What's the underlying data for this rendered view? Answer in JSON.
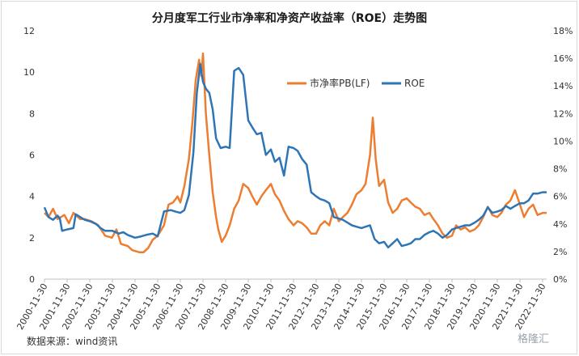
{
  "title": "分月度军工行业市净率和净资产收益率（ROE）走势图",
  "source": "数据来源：wind资讯",
  "watermark": "格隆汇",
  "chart_data": {
    "type": "line",
    "title": "分月度军工行业市净率和净资产收益率（ROE）走势图",
    "grid": false,
    "legend_position": "top-center",
    "x_labels": [
      "2000-11-30",
      "2001-11-30",
      "2002-11-30",
      "2003-11-30",
      "2004-11-30",
      "2005-11-30",
      "2006-11-30",
      "2007-11-30",
      "2008-11-30",
      "2009-11-30",
      "2010-11-30",
      "2011-11-30",
      "2012-11-30",
      "2013-11-30",
      "2014-11-30",
      "2015-11-30",
      "2016-11-30",
      "2017-11-30",
      "2018-11-30",
      "2019-11-30",
      "2020-11-30",
      "2021-11-30",
      "2022-11-30"
    ],
    "y_left": {
      "min": 0,
      "max": 12,
      "ticks": [
        0,
        2,
        4,
        6,
        8,
        10,
        12
      ]
    },
    "y_right": {
      "min": 0,
      "max": 18,
      "ticks": [
        "0%",
        "2%",
        "4%",
        "6%",
        "8%",
        "10%",
        "12%",
        "14%",
        "16%",
        "18%"
      ]
    },
    "series": [
      {
        "name": "市净率PB(LF)",
        "axis": "left",
        "color": "#ed7d31",
        "points": [
          [
            2000.92,
            3.2
          ],
          [
            2001.1,
            3.0
          ],
          [
            2001.3,
            3.4
          ],
          [
            2001.5,
            2.9
          ],
          [
            2001.8,
            3.1
          ],
          [
            2002.0,
            2.7
          ],
          [
            2002.2,
            3.2
          ],
          [
            2002.5,
            2.9
          ],
          [
            2002.7,
            2.9
          ],
          [
            2003.0,
            2.8
          ],
          [
            2003.3,
            2.6
          ],
          [
            2003.6,
            2.1
          ],
          [
            2003.9,
            2.0
          ],
          [
            2004.1,
            2.4
          ],
          [
            2004.3,
            1.7
          ],
          [
            2004.6,
            1.6
          ],
          [
            2004.8,
            1.4
          ],
          [
            2005.1,
            1.3
          ],
          [
            2005.3,
            1.3
          ],
          [
            2005.5,
            1.5
          ],
          [
            2005.7,
            1.9
          ],
          [
            2005.92,
            2.1
          ],
          [
            2006.2,
            2.6
          ],
          [
            2006.4,
            3.6
          ],
          [
            2006.6,
            3.7
          ],
          [
            2006.8,
            4.0
          ],
          [
            2006.92,
            3.7
          ],
          [
            2007.1,
            4.5
          ],
          [
            2007.3,
            5.8
          ],
          [
            2007.45,
            7.5
          ],
          [
            2007.6,
            9.6
          ],
          [
            2007.75,
            10.6
          ],
          [
            2007.85,
            9.8
          ],
          [
            2007.92,
            10.9
          ],
          [
            2008.05,
            8.0
          ],
          [
            2008.2,
            6.0
          ],
          [
            2008.35,
            4.2
          ],
          [
            2008.5,
            3.0
          ],
          [
            2008.6,
            2.4
          ],
          [
            2008.75,
            1.8
          ],
          [
            2008.92,
            2.1
          ],
          [
            2009.1,
            2.6
          ],
          [
            2009.3,
            3.4
          ],
          [
            2009.5,
            3.8
          ],
          [
            2009.7,
            4.6
          ],
          [
            2009.92,
            4.4
          ],
          [
            2010.1,
            4.0
          ],
          [
            2010.3,
            3.6
          ],
          [
            2010.5,
            4.0
          ],
          [
            2010.7,
            4.3
          ],
          [
            2010.92,
            4.6
          ],
          [
            2011.1,
            4.1
          ],
          [
            2011.3,
            3.8
          ],
          [
            2011.5,
            3.3
          ],
          [
            2011.7,
            2.9
          ],
          [
            2011.92,
            2.6
          ],
          [
            2012.1,
            2.8
          ],
          [
            2012.3,
            2.7
          ],
          [
            2012.5,
            2.5
          ],
          [
            2012.7,
            2.2
          ],
          [
            2012.92,
            2.2
          ],
          [
            2013.1,
            2.6
          ],
          [
            2013.3,
            2.8
          ],
          [
            2013.5,
            2.6
          ],
          [
            2013.7,
            3.4
          ],
          [
            2013.92,
            2.8
          ],
          [
            2014.1,
            3.0
          ],
          [
            2014.3,
            3.2
          ],
          [
            2014.5,
            3.6
          ],
          [
            2014.7,
            4.1
          ],
          [
            2014.92,
            4.3
          ],
          [
            2015.1,
            4.6
          ],
          [
            2015.3,
            6.0
          ],
          [
            2015.42,
            7.8
          ],
          [
            2015.55,
            5.8
          ],
          [
            2015.7,
            4.5
          ],
          [
            2015.92,
            4.8
          ],
          [
            2016.1,
            3.7
          ],
          [
            2016.3,
            3.2
          ],
          [
            2016.5,
            3.4
          ],
          [
            2016.7,
            3.8
          ],
          [
            2016.92,
            3.9
          ],
          [
            2017.1,
            3.7
          ],
          [
            2017.3,
            3.5
          ],
          [
            2017.5,
            3.4
          ],
          [
            2017.7,
            3.1
          ],
          [
            2017.92,
            3.2
          ],
          [
            2018.1,
            2.9
          ],
          [
            2018.3,
            2.6
          ],
          [
            2018.5,
            2.2
          ],
          [
            2018.7,
            2.0
          ],
          [
            2018.92,
            2.1
          ],
          [
            2019.1,
            2.6
          ],
          [
            2019.3,
            2.4
          ],
          [
            2019.5,
            2.5
          ],
          [
            2019.7,
            2.3
          ],
          [
            2019.92,
            2.4
          ],
          [
            2020.1,
            2.6
          ],
          [
            2020.3,
            3.0
          ],
          [
            2020.5,
            3.5
          ],
          [
            2020.7,
            3.1
          ],
          [
            2020.92,
            3.0
          ],
          [
            2021.1,
            3.2
          ],
          [
            2021.3,
            3.6
          ],
          [
            2021.5,
            3.8
          ],
          [
            2021.7,
            4.3
          ],
          [
            2021.92,
            3.6
          ],
          [
            2022.1,
            3.0
          ],
          [
            2022.3,
            3.4
          ],
          [
            2022.5,
            3.6
          ],
          [
            2022.7,
            3.1
          ],
          [
            2022.92,
            3.2
          ],
          [
            2023.1,
            3.2
          ]
        ]
      },
      {
        "name": "ROE",
        "axis": "right",
        "color": "#2e75b6",
        "points": [
          [
            2000.92,
            5.2
          ],
          [
            2001.1,
            4.5
          ],
          [
            2001.3,
            4.3
          ],
          [
            2001.5,
            4.6
          ],
          [
            2001.6,
            4.4
          ],
          [
            2001.7,
            3.5
          ],
          [
            2001.92,
            3.6
          ],
          [
            2002.2,
            3.7
          ],
          [
            2002.3,
            4.7
          ],
          [
            2002.5,
            4.5
          ],
          [
            2002.7,
            4.3
          ],
          [
            2002.92,
            4.2
          ],
          [
            2003.2,
            4.0
          ],
          [
            2003.4,
            3.7
          ],
          [
            2003.6,
            3.5
          ],
          [
            2003.8,
            3.5
          ],
          [
            2003.92,
            3.5
          ],
          [
            2004.2,
            3.3
          ],
          [
            2004.4,
            3.4
          ],
          [
            2004.6,
            3.2
          ],
          [
            2004.92,
            3.0
          ],
          [
            2005.2,
            3.1
          ],
          [
            2005.4,
            3.2
          ],
          [
            2005.7,
            3.3
          ],
          [
            2005.92,
            3.1
          ],
          [
            2006.2,
            4.9
          ],
          [
            2006.5,
            5.0
          ],
          [
            2006.7,
            4.9
          ],
          [
            2006.92,
            4.8
          ],
          [
            2007.1,
            5.0
          ],
          [
            2007.3,
            6.1
          ],
          [
            2007.5,
            9.2
          ],
          [
            2007.65,
            13.5
          ],
          [
            2007.8,
            15.6
          ],
          [
            2007.92,
            14.3
          ],
          [
            2008.05,
            13.8
          ],
          [
            2008.2,
            13.5
          ],
          [
            2008.35,
            12.3
          ],
          [
            2008.5,
            10.2
          ],
          [
            2008.7,
            9.5
          ],
          [
            2008.92,
            9.6
          ],
          [
            2009.1,
            9.5
          ],
          [
            2009.3,
            15.1
          ],
          [
            2009.5,
            15.3
          ],
          [
            2009.7,
            14.8
          ],
          [
            2009.92,
            11.5
          ],
          [
            2010.1,
            11.0
          ],
          [
            2010.3,
            10.5
          ],
          [
            2010.5,
            10.6
          ],
          [
            2010.7,
            9.0
          ],
          [
            2010.92,
            9.4
          ],
          [
            2011.1,
            8.5
          ],
          [
            2011.3,
            8.8
          ],
          [
            2011.5,
            7.5
          ],
          [
            2011.7,
            9.6
          ],
          [
            2011.92,
            9.5
          ],
          [
            2012.1,
            9.3
          ],
          [
            2012.3,
            8.7
          ],
          [
            2012.5,
            8.3
          ],
          [
            2012.7,
            6.3
          ],
          [
            2012.92,
            6.0
          ],
          [
            2013.1,
            5.8
          ],
          [
            2013.3,
            5.7
          ],
          [
            2013.5,
            5.5
          ],
          [
            2013.7,
            4.5
          ],
          [
            2013.92,
            4.4
          ],
          [
            2014.1,
            4.3
          ],
          [
            2014.3,
            4.1
          ],
          [
            2014.5,
            3.9
          ],
          [
            2014.7,
            3.8
          ],
          [
            2014.92,
            3.7
          ],
          [
            2015.1,
            3.8
          ],
          [
            2015.3,
            3.9
          ],
          [
            2015.5,
            2.9
          ],
          [
            2015.7,
            2.6
          ],
          [
            2015.92,
            2.7
          ],
          [
            2016.1,
            2.3
          ],
          [
            2016.3,
            2.6
          ],
          [
            2016.5,
            2.9
          ],
          [
            2016.7,
            2.4
          ],
          [
            2016.92,
            2.5
          ],
          [
            2017.1,
            2.6
          ],
          [
            2017.3,
            2.9
          ],
          [
            2017.5,
            2.9
          ],
          [
            2017.7,
            3.2
          ],
          [
            2017.92,
            3.4
          ],
          [
            2018.1,
            3.5
          ],
          [
            2018.3,
            3.3
          ],
          [
            2018.5,
            3.0
          ],
          [
            2018.7,
            3.2
          ],
          [
            2018.92,
            3.6
          ],
          [
            2019.1,
            3.7
          ],
          [
            2019.3,
            3.8
          ],
          [
            2019.5,
            3.9
          ],
          [
            2019.7,
            3.9
          ],
          [
            2019.92,
            4.1
          ],
          [
            2020.1,
            4.3
          ],
          [
            2020.3,
            4.6
          ],
          [
            2020.5,
            5.2
          ],
          [
            2020.7,
            4.8
          ],
          [
            2020.92,
            4.9
          ],
          [
            2021.1,
            5.0
          ],
          [
            2021.3,
            5.3
          ],
          [
            2021.5,
            5.1
          ],
          [
            2021.7,
            5.3
          ],
          [
            2021.92,
            5.5
          ],
          [
            2022.1,
            5.5
          ],
          [
            2022.3,
            5.7
          ],
          [
            2022.5,
            6.2
          ],
          [
            2022.7,
            6.2
          ],
          [
            2022.92,
            6.3
          ],
          [
            2023.1,
            6.3
          ]
        ]
      }
    ]
  }
}
